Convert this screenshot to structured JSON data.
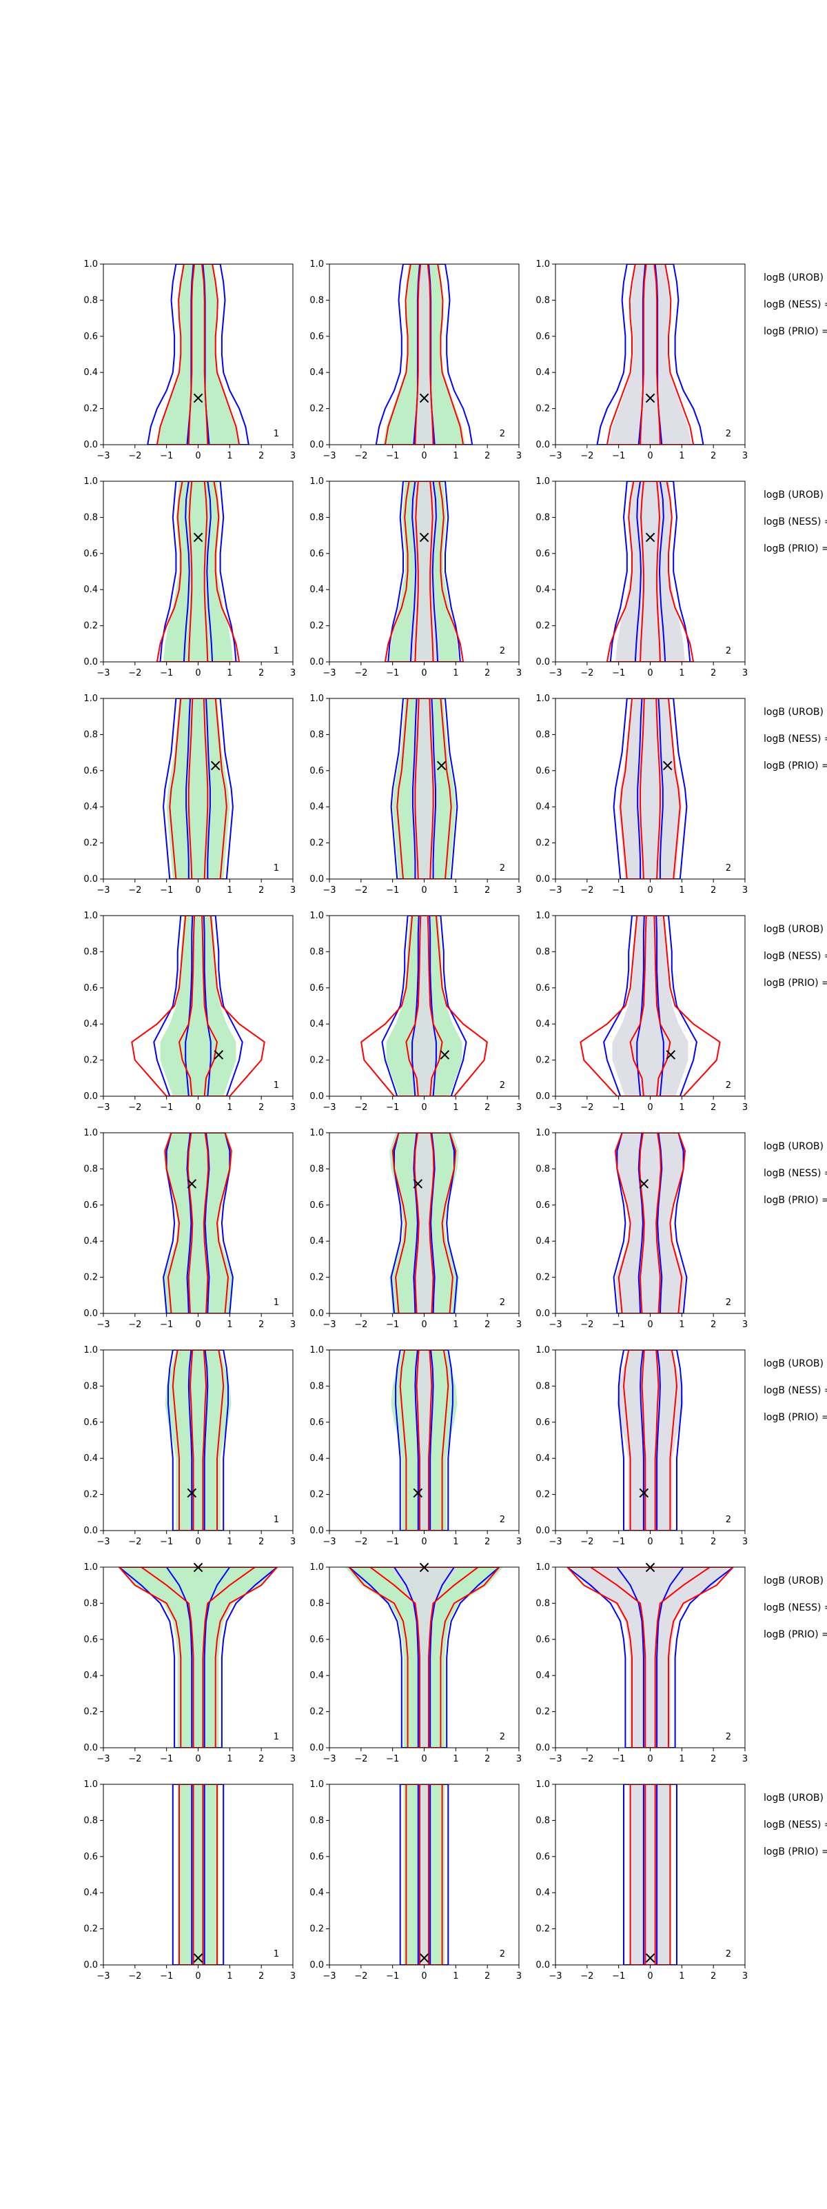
{
  "figure": {
    "rows": 8,
    "cols": 3,
    "colors": {
      "green_fill": "#b7ecbf",
      "gray_fill": "#dcdce4",
      "blue": "#0000ff",
      "red": "#ff0000",
      "marker": "#000000",
      "axes": "#000000"
    },
    "side_labels": [
      "logB (UROB) =",
      "logB (NESS) =",
      "logB (PRIO) ="
    ],
    "x_ticks": [
      "−3",
      "−2",
      "−1",
      "0",
      "1",
      "2",
      "3"
    ],
    "y_ticks": [
      "0.0",
      "0.2",
      "0.4",
      "0.6",
      "0.8",
      "1.0"
    ]
  },
  "chart_data": {
    "type": "contour",
    "xlim": [
      -3,
      3
    ],
    "ylim": [
      0,
      1
    ],
    "grid": false,
    "column_corner_labels": [
      "1",
      "2",
      "2"
    ],
    "marker_symbol": "×",
    "markers": [
      {
        "x": 0.0,
        "y": 0.26
      },
      {
        "x": 0.0,
        "y": 0.69
      },
      {
        "x": 0.55,
        "y": 0.63
      },
      {
        "x": 0.65,
        "y": 0.23
      },
      {
        "x": -0.2,
        "y": 0.72
      },
      {
        "x": -0.2,
        "y": 0.21
      },
      {
        "x": 0.0,
        "y": 1.0
      },
      {
        "x": 0.0,
        "y": 0.04
      }
    ],
    "contour_profiles": {
      "rows": [
        {
          "y": [
            0.0,
            0.1,
            0.2,
            0.3,
            0.4,
            0.5,
            0.6,
            0.7,
            0.8,
            0.9,
            1.0
          ],
          "blue_outer": [
            1.6,
            1.5,
            1.3,
            1.0,
            0.8,
            0.75,
            0.75,
            0.8,
            0.85,
            0.8,
            0.7
          ],
          "blue_inner": [
            0.35,
            0.3,
            0.25,
            0.22,
            0.22,
            0.22,
            0.22,
            0.22,
            0.22,
            0.2,
            0.15
          ],
          "red_outer": [
            1.3,
            1.2,
            1.0,
            0.8,
            0.6,
            0.55,
            0.55,
            0.6,
            0.62,
            0.55,
            0.45
          ],
          "red_inner": [
            0.3,
            0.28,
            0.25,
            0.22,
            0.2,
            0.2,
            0.2,
            0.2,
            0.2,
            0.18,
            0.12
          ],
          "green": [
            1.3,
            1.2,
            1.0,
            0.8,
            0.6,
            0.55,
            0.55,
            0.6,
            0.6,
            0.55,
            0.5
          ]
        },
        {
          "y": [
            0.0,
            0.1,
            0.2,
            0.3,
            0.4,
            0.5,
            0.6,
            0.7,
            0.8,
            0.9,
            1.0
          ],
          "blue_outer": [
            1.2,
            1.15,
            1.05,
            0.9,
            0.8,
            0.7,
            0.7,
            0.75,
            0.8,
            0.75,
            0.7
          ],
          "blue_inner": [
            0.45,
            0.42,
            0.38,
            0.33,
            0.3,
            0.28,
            0.3,
            0.35,
            0.4,
            0.38,
            0.3
          ],
          "red_outer": [
            1.3,
            1.2,
            1.0,
            0.75,
            0.6,
            0.55,
            0.55,
            0.6,
            0.65,
            0.6,
            0.5
          ],
          "red_inner": [
            0.3,
            0.28,
            0.25,
            0.22,
            0.2,
            0.2,
            0.22,
            0.25,
            0.28,
            0.25,
            0.2
          ],
          "green": [
            1.1,
            1.05,
            0.95,
            0.8,
            0.7,
            0.6,
            0.6,
            0.65,
            0.7,
            0.65,
            0.6
          ]
        },
        {
          "y": [
            0.0,
            0.1,
            0.2,
            0.3,
            0.4,
            0.5,
            0.6,
            0.7,
            0.8,
            0.9,
            1.0
          ],
          "blue_outer": [
            0.9,
            0.95,
            1.0,
            1.05,
            1.1,
            1.05,
            0.95,
            0.85,
            0.8,
            0.75,
            0.7
          ],
          "blue_inner": [
            0.3,
            0.3,
            0.32,
            0.35,
            0.38,
            0.38,
            0.35,
            0.32,
            0.3,
            0.28,
            0.25
          ],
          "red_outer": [
            0.7,
            0.75,
            0.8,
            0.85,
            0.9,
            0.85,
            0.75,
            0.7,
            0.65,
            0.6,
            0.55
          ],
          "red_inner": [
            0.2,
            0.22,
            0.25,
            0.28,
            0.3,
            0.3,
            0.28,
            0.25,
            0.22,
            0.2,
            0.18
          ],
          "green": [
            0.8,
            0.85,
            0.9,
            0.95,
            1.0,
            0.95,
            0.85,
            0.75,
            0.7,
            0.65,
            0.6
          ]
        },
        {
          "y": [
            0.0,
            0.1,
            0.2,
            0.3,
            0.4,
            0.5,
            0.6,
            0.7,
            0.8,
            0.9,
            1.0
          ],
          "blue_outer": [
            0.9,
            1.1,
            1.3,
            1.4,
            1.1,
            0.8,
            0.7,
            0.65,
            0.65,
            0.6,
            0.55
          ],
          "blue_inner": [
            0.3,
            0.35,
            0.4,
            0.4,
            0.3,
            0.25,
            0.22,
            0.2,
            0.2,
            0.2,
            0.18
          ],
          "red_outer": [
            1.0,
            1.5,
            2.0,
            2.1,
            1.3,
            0.75,
            0.6,
            0.55,
            0.5,
            0.45,
            0.4
          ],
          "red_inner": [
            0.2,
            0.25,
            0.5,
            0.6,
            0.3,
            0.2,
            0.18,
            0.16,
            0.15,
            0.14,
            0.12
          ],
          "green": [
            0.8,
            1.0,
            1.2,
            1.2,
            0.9,
            0.7,
            0.6,
            0.55,
            0.55,
            0.5,
            0.45
          ]
        },
        {
          "y": [
            0.0,
            0.1,
            0.2,
            0.3,
            0.4,
            0.5,
            0.6,
            0.7,
            0.8,
            0.9,
            1.0
          ],
          "blue_outer": [
            1.0,
            1.05,
            1.1,
            0.95,
            0.8,
            0.75,
            0.8,
            0.9,
            1.0,
            1.0,
            0.85
          ],
          "blue_inner": [
            0.3,
            0.32,
            0.35,
            0.3,
            0.25,
            0.22,
            0.25,
            0.3,
            0.35,
            0.32,
            0.25
          ],
          "red_outer": [
            0.85,
            0.9,
            0.95,
            0.8,
            0.65,
            0.6,
            0.7,
            0.85,
            1.0,
            1.05,
            0.85
          ],
          "red_inner": [
            0.25,
            0.28,
            0.3,
            0.25,
            0.2,
            0.18,
            0.22,
            0.28,
            0.32,
            0.3,
            0.22
          ],
          "green": [
            1.0,
            1.05,
            1.1,
            0.9,
            0.7,
            0.65,
            0.75,
            0.9,
            1.05,
            1.1,
            0.9
          ]
        },
        {
          "y": [
            0.0,
            0.1,
            0.2,
            0.3,
            0.4,
            0.5,
            0.6,
            0.7,
            0.8,
            0.9,
            1.0
          ],
          "blue_outer": [
            0.8,
            0.8,
            0.8,
            0.8,
            0.8,
            0.85,
            0.9,
            0.95,
            0.95,
            0.9,
            0.8
          ],
          "blue_inner": [
            0.2,
            0.2,
            0.2,
            0.2,
            0.2,
            0.22,
            0.25,
            0.28,
            0.3,
            0.28,
            0.22
          ],
          "red_outer": [
            0.6,
            0.6,
            0.6,
            0.6,
            0.6,
            0.65,
            0.7,
            0.75,
            0.8,
            0.75,
            0.65
          ],
          "red_inner": [
            0.15,
            0.15,
            0.15,
            0.15,
            0.15,
            0.18,
            0.2,
            0.22,
            0.25,
            0.22,
            0.18
          ],
          "green": [
            0.7,
            0.7,
            0.7,
            0.7,
            0.7,
            0.8,
            0.95,
            1.05,
            1.0,
            0.85,
            0.7
          ]
        },
        {
          "y": [
            0.0,
            0.1,
            0.2,
            0.3,
            0.4,
            0.5,
            0.6,
            0.7,
            0.8,
            0.9,
            1.0
          ],
          "blue_outer": [
            0.75,
            0.75,
            0.75,
            0.75,
            0.75,
            0.75,
            0.8,
            0.9,
            1.2,
            1.8,
            2.5
          ],
          "blue_inner": [
            0.2,
            0.2,
            0.2,
            0.2,
            0.2,
            0.2,
            0.22,
            0.25,
            0.35,
            0.6,
            1.0
          ],
          "red_outer": [
            0.55,
            0.55,
            0.55,
            0.55,
            0.55,
            0.55,
            0.6,
            0.7,
            1.0,
            2.0,
            2.5
          ],
          "red_inner": [
            0.15,
            0.15,
            0.15,
            0.15,
            0.15,
            0.15,
            0.18,
            0.22,
            0.3,
            1.0,
            1.8
          ],
          "green": [
            0.65,
            0.65,
            0.65,
            0.65,
            0.65,
            0.65,
            0.7,
            0.8,
            1.1,
            2.0,
            2.5
          ]
        },
        {
          "y": [
            0.0,
            0.1,
            0.2,
            0.3,
            0.4,
            0.5,
            0.6,
            0.7,
            0.8,
            0.9,
            1.0
          ],
          "blue_outer": [
            0.8,
            0.8,
            0.8,
            0.8,
            0.8,
            0.8,
            0.8,
            0.8,
            0.8,
            0.8,
            0.8
          ],
          "blue_inner": [
            0.2,
            0.2,
            0.2,
            0.2,
            0.2,
            0.2,
            0.2,
            0.2,
            0.2,
            0.2,
            0.2
          ],
          "red_outer": [
            0.6,
            0.6,
            0.6,
            0.6,
            0.6,
            0.6,
            0.6,
            0.6,
            0.6,
            0.6,
            0.6
          ],
          "red_inner": [
            0.15,
            0.15,
            0.15,
            0.15,
            0.15,
            0.15,
            0.15,
            0.15,
            0.15,
            0.15,
            0.15
          ],
          "green": [
            0.65,
            0.65,
            0.65,
            0.65,
            0.65,
            0.65,
            0.65,
            0.65,
            0.65,
            0.65,
            0.65
          ]
        }
      ]
    }
  }
}
